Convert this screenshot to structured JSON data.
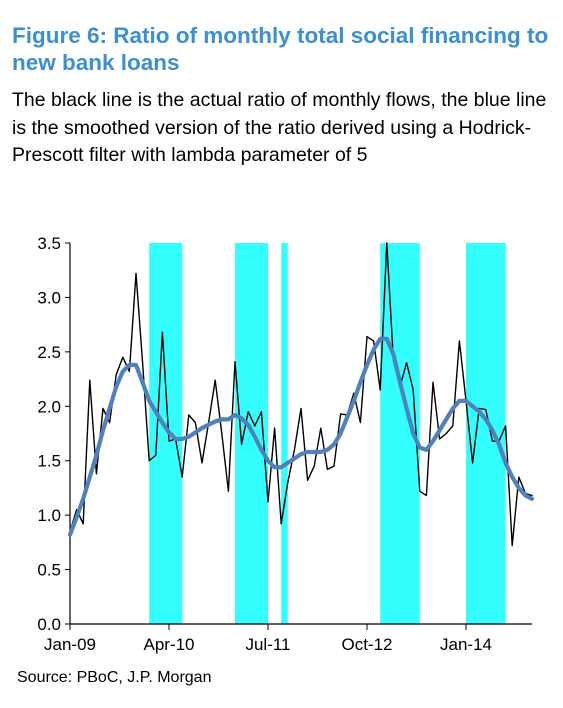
{
  "figure": {
    "title": "Figure 6: Ratio of monthly total social financing to new bank loans",
    "subtitle": "The black line is the actual ratio of monthly flows, the blue line is the smoothed version of the ratio derived using a Hodrick-Prescott filter with lambda parameter of 5",
    "source": "Source:  PBoC, J.P. Morgan"
  },
  "chart_data": {
    "type": "line",
    "x_start": "Jan-09",
    "frequency": "monthly",
    "xtick_labels": [
      "Jan-09",
      "Apr-10",
      "Jul-11",
      "Oct-12",
      "Jan-14"
    ],
    "ylim": [
      0,
      3.5
    ],
    "yticks": [
      "0.0",
      "0.5",
      "1.0",
      "1.5",
      "2.0",
      "2.5",
      "3.0",
      "3.5"
    ],
    "grid": false,
    "legend": "none",
    "shaded_periods": [
      {
        "start": "Jan-10",
        "end": "Jun-10"
      },
      {
        "start": "Feb-11",
        "end": "Jul-11"
      },
      {
        "start": "Sep-11",
        "end": "Oct-11"
      },
      {
        "start": "Dec-12",
        "end": "Jun-13"
      },
      {
        "start": "Jan-14",
        "end": "Jul-14"
      }
    ],
    "colors": {
      "actual": "#000000",
      "smoothed": "#4f81bd",
      "shading": "#33ffff",
      "title": "#3c8fd3"
    },
    "series": [
      {
        "key": "actual",
        "values": [
          0.85,
          1.05,
          0.92,
          2.24,
          1.38,
          1.98,
          1.85,
          2.29,
          2.45,
          2.32,
          3.22,
          2.4,
          1.5,
          1.55,
          2.68,
          1.68,
          1.7,
          1.35,
          1.92,
          1.85,
          1.48,
          1.85,
          2.24,
          1.75,
          1.22,
          2.41,
          1.65,
          1.95,
          1.82,
          1.95,
          1.12,
          1.8,
          0.92,
          1.3,
          1.6,
          1.98,
          1.32,
          1.45,
          1.8,
          1.42,
          1.45,
          1.93,
          1.92,
          2.12,
          1.85,
          2.64,
          2.6,
          2.15,
          3.5,
          2.42,
          2.18,
          2.4,
          2.15,
          1.22,
          1.18,
          2.22,
          1.7,
          1.75,
          1.82,
          2.6,
          2.05,
          1.48,
          1.98,
          1.97,
          1.68,
          1.68,
          1.82,
          0.72,
          1.35,
          1.2,
          1.18
        ],
        "print_format": "{:.2f}"
      },
      {
        "key": "smoothed",
        "values": [
          0.82,
          0.98,
          1.15,
          1.35,
          1.55,
          1.78,
          1.98,
          2.18,
          2.32,
          2.38,
          2.38,
          2.22,
          2.05,
          1.95,
          1.85,
          1.76,
          1.7,
          1.7,
          1.72,
          1.76,
          1.8,
          1.83,
          1.86,
          1.88,
          1.88,
          1.92,
          1.89,
          1.83,
          1.72,
          1.6,
          1.5,
          1.44,
          1.44,
          1.48,
          1.52,
          1.56,
          1.58,
          1.58,
          1.58,
          1.6,
          1.65,
          1.75,
          1.9,
          2.05,
          2.22,
          2.38,
          2.52,
          2.62,
          2.62,
          2.48,
          2.22,
          1.98,
          1.75,
          1.62,
          1.6,
          1.68,
          1.78,
          1.88,
          1.98,
          2.05,
          2.05,
          2.0,
          1.95,
          1.88,
          1.78,
          1.65,
          1.48,
          1.35,
          1.25,
          1.18,
          1.15
        ],
        "print_format": "{:.2f}"
      }
    ]
  }
}
